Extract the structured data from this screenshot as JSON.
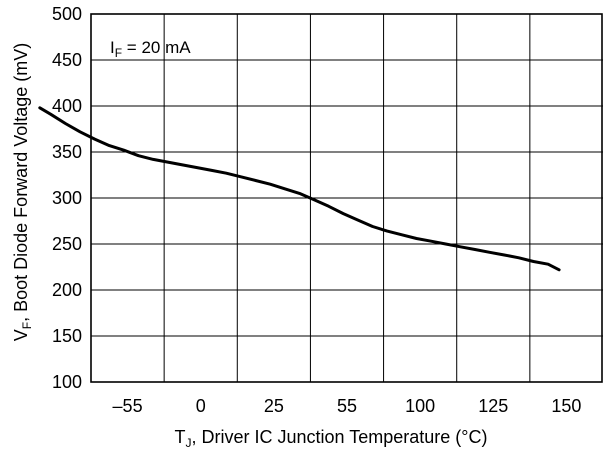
{
  "chart_data": {
    "type": "line",
    "title": "",
    "xlabel": {
      "prefix": "T",
      "subscript": "J",
      "suffix": ", Driver IC Junction Temperature (°C)"
    },
    "ylabel": {
      "prefix": "V",
      "subscript": "F",
      "suffix": ", Boot Diode Forward Voltage (mV)"
    },
    "x_tick_labels": [
      "–55",
      "0",
      "25",
      "55",
      "100",
      "125",
      "150"
    ],
    "y_ticks": [
      100,
      150,
      200,
      250,
      300,
      350,
      400,
      450,
      500
    ],
    "ylim": [
      100,
      500
    ],
    "grid": true,
    "annotation": {
      "prefix": "I",
      "subscript": "F",
      "suffix": " = 20 mA"
    },
    "series": [
      {
        "x_tick_index": [
          -1.2,
          -1.05,
          -0.85,
          -0.65,
          -0.45,
          -0.25,
          -0.05,
          0.15,
          0.35,
          0.55,
          0.75,
          0.95,
          1.15,
          1.35,
          1.55,
          1.75,
          1.95,
          2.15,
          2.35,
          2.55,
          2.75,
          2.95,
          3.15,
          3.35,
          3.55,
          3.75,
          3.95,
          4.15,
          4.35,
          4.55,
          4.75,
          4.95,
          5.15,
          5.35,
          5.55,
          5.75,
          5.9
        ],
        "values": [
          398,
          391,
          381,
          372,
          364,
          357,
          352,
          346,
          342,
          339,
          336,
          333,
          330,
          327,
          323,
          319,
          315,
          310,
          305,
          298,
          291,
          283,
          276,
          269,
          264,
          260,
          256,
          253,
          250,
          247,
          244,
          241,
          238,
          235,
          231,
          228,
          222
        ]
      }
    ]
  }
}
